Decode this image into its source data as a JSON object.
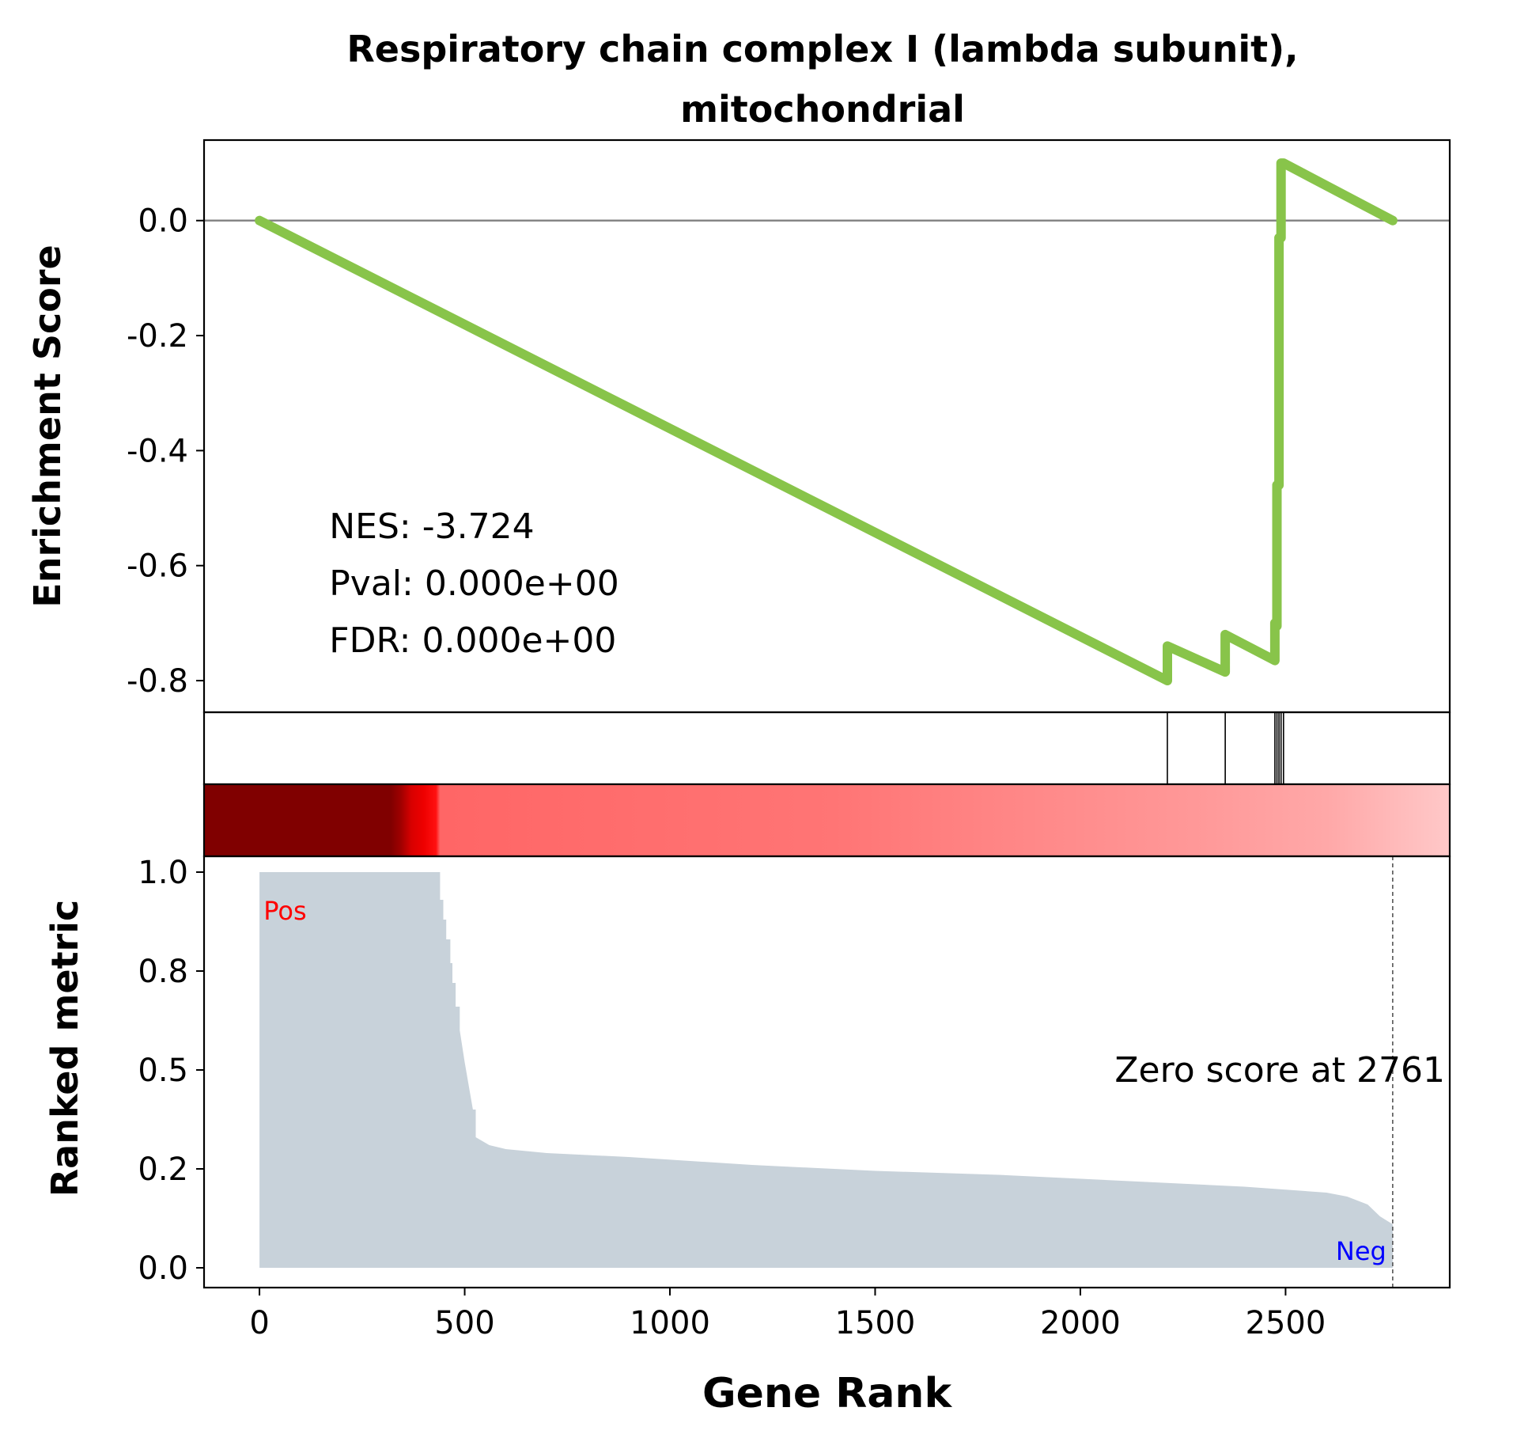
{
  "chart_data": {
    "type": "gsea_enrichment",
    "title_lines": [
      "Respiratory chain complex I (lambda subunit),",
      "mitochondrial"
    ],
    "es_panel": {
      "ylabel": "Enrichment Score",
      "ylim": [
        -0.855,
        0.14
      ],
      "yticks": [
        0.0,
        -0.2,
        -0.4,
        -0.6,
        -0.8
      ],
      "ytick_labels": [
        "0.0",
        "-0.2",
        "-0.4",
        "-0.6",
        "-0.8"
      ],
      "zero_line": true,
      "line_color": "#88c44a",
      "running_es": {
        "x": [
          0,
          2212,
          2212,
          2353,
          2353,
          2474,
          2474,
          2479,
          2479,
          2484,
          2484,
          2489,
          2489,
          2495,
          2495,
          2761
        ],
        "y": [
          0.0,
          -0.8,
          -0.74,
          -0.785,
          -0.72,
          -0.765,
          -0.7,
          -0.705,
          -0.46,
          -0.46,
          -0.03,
          -0.03,
          0.1,
          0.1,
          0.1,
          0.0
        ]
      },
      "stats": [
        "NES: -3.724",
        "Pval: 0.000e+00",
        "FDR: 0.000e+00"
      ]
    },
    "hits": [
      2212,
      2353,
      2474,
      2479,
      2484,
      2489,
      2495
    ],
    "color_bar": {
      "stops": [
        {
          "rank": 0,
          "color": "#800000"
        },
        {
          "rank": 320,
          "color": "#800000"
        },
        {
          "rank": 345,
          "color": "#a00000"
        },
        {
          "rank": 370,
          "color": "#d80000"
        },
        {
          "rank": 400,
          "color": "#ee0000"
        },
        {
          "rank": 430,
          "color": "#ff1010"
        },
        {
          "rank": 440,
          "color": "#ff6666"
        },
        {
          "rank": 1400,
          "color": "#ff7575"
        },
        {
          "rank": 2300,
          "color": "#ff9999"
        },
        {
          "rank": 2600,
          "color": "#ffa8a8"
        },
        {
          "rank": 2900,
          "color": "#ffc8c8"
        }
      ]
    },
    "metric_panel": {
      "ylabel": "Ranked metric",
      "ylim": [
        -0.05,
        1.04
      ],
      "yticks": [
        0.0,
        0.25,
        0.5,
        0.75,
        1.0
      ],
      "ytick_labels": [
        "0.0",
        "0.2",
        "0.5",
        "0.8",
        "1.0"
      ],
      "fill_color": "#c8d2da",
      "ranked_metric": {
        "x": [
          0,
          437,
          440,
          448,
          455,
          465,
          470,
          478,
          488,
          500,
          520,
          527,
          560,
          600,
          700,
          900,
          1200,
          1500,
          1800,
          2100,
          2400,
          2600,
          2650,
          2700,
          2730,
          2761
        ],
        "y": [
          1.0,
          1.0,
          0.93,
          0.88,
          0.83,
          0.77,
          0.72,
          0.66,
          0.6,
          0.52,
          0.4,
          0.33,
          0.31,
          0.3,
          0.29,
          0.28,
          0.26,
          0.245,
          0.235,
          0.22,
          0.205,
          0.19,
          0.18,
          0.16,
          0.13,
          0.11
        ]
      },
      "pos_label": "Pos",
      "neg_label": "Neg",
      "pos_color": "#ff0000",
      "neg_color": "#0000ff",
      "zero_score_rank": 2761,
      "zero_score_text": "Zero score at 2761"
    },
    "xlabel": "Gene Rank",
    "xlim": [
      -135,
      2900
    ],
    "xticks": [
      0,
      500,
      1000,
      1500,
      2000,
      2500
    ],
    "xtick_labels": [
      "0",
      "500",
      "1000",
      "1500",
      "2000",
      "2500"
    ]
  }
}
